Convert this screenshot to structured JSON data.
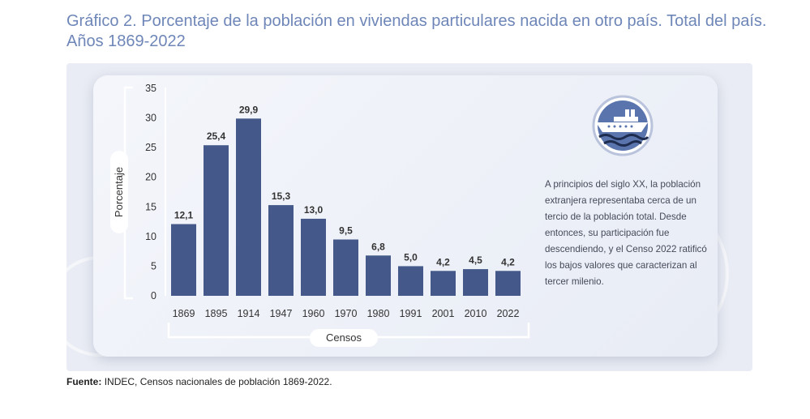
{
  "title": "Gráfico 2. Porcentaje de la población en viviendas particulares nacida en otro país. Total del país. Años 1869-2022",
  "note": "A principios del siglo XX, la población extranjera representaba cerca de un tercio de la población total. Desde entonces, su participación fue descendiendo, y el Censo 2022 ratificó los bajos valores que caracterizan al tercer milenio.",
  "source": {
    "label": "Fuente:",
    "text": "INDEC, Censos nacionales de población 1869-2022."
  },
  "icons": {
    "emblem": "steamship-icon"
  },
  "colors": {
    "bar": "#44598a",
    "title": "#6e86b8"
  },
  "chart_data": {
    "type": "bar",
    "categories": [
      "1869",
      "1895",
      "1914",
      "1947",
      "1960",
      "1970",
      "1980",
      "1991",
      "2001",
      "2010",
      "2022"
    ],
    "values": [
      12.1,
      25.4,
      29.9,
      15.3,
      13.0,
      9.5,
      6.8,
      5.0,
      4.2,
      4.5,
      4.2
    ],
    "value_labels": [
      "12,1",
      "25,4",
      "29,9",
      "15,3",
      "13,0",
      "9,5",
      "6,8",
      "5,0",
      "4,2",
      "4,5",
      "4,2"
    ],
    "yticks": [
      "0",
      "5",
      "10",
      "15",
      "20",
      "25",
      "30",
      "35"
    ],
    "ylim": [
      0,
      35
    ],
    "xlabel": "Censos",
    "ylabel": "Porcentaje",
    "grid": false
  }
}
